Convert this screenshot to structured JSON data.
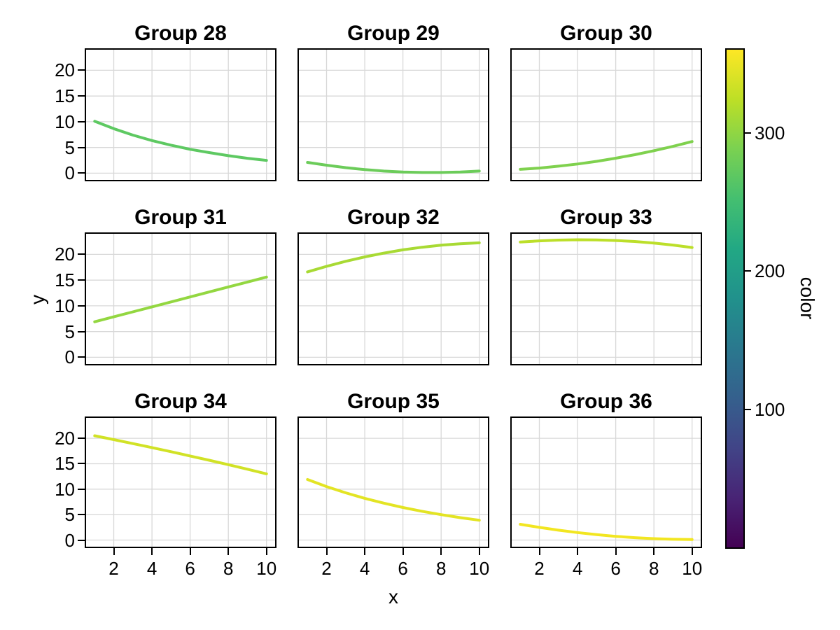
{
  "chart_data": {
    "type": "line",
    "layout": "3x3-facet-grid",
    "xlabel": "x",
    "ylabel": "y",
    "x": [
      1,
      2,
      3,
      4,
      5,
      6,
      7,
      8,
      9,
      10
    ],
    "xticks": [
      2,
      4,
      6,
      8,
      10
    ],
    "yticks": [
      0,
      5,
      10,
      15,
      20
    ],
    "xlim": [
      0.55,
      10.45
    ],
    "ylim": [
      -1.3,
      24.0
    ],
    "grid": true,
    "grid_color": "#d8d8d8",
    "spine_color": "#000000",
    "facets": [
      {
        "title": "Group 28",
        "line_color": "#5ec962",
        "y": [
          10.1,
          8.65,
          7.4,
          6.35,
          5.45,
          4.65,
          4.0,
          3.4,
          2.9,
          2.5
        ]
      },
      {
        "title": "Group 29",
        "line_color": "#6ccc5a",
        "y": [
          2.1,
          1.55,
          1.08,
          0.7,
          0.42,
          0.24,
          0.14,
          0.14,
          0.24,
          0.42
        ]
      },
      {
        "title": "Group 30",
        "line_color": "#7fd14e",
        "y": [
          0.75,
          1.0,
          1.36,
          1.79,
          2.31,
          2.91,
          3.6,
          4.37,
          5.22,
          6.15
        ]
      },
      {
        "title": "Group 31",
        "line_color": "#93d741",
        "y": [
          6.9,
          7.87,
          8.83,
          9.8,
          10.77,
          11.73,
          12.7,
          13.67,
          14.63,
          15.6
        ]
      },
      {
        "title": "Group 32",
        "line_color": "#a8da34",
        "y": [
          16.6,
          17.68,
          18.65,
          19.51,
          20.25,
          20.88,
          21.39,
          21.79,
          22.07,
          22.24
        ]
      },
      {
        "title": "Group 33",
        "line_color": "#bcdf2a",
        "y": [
          22.39,
          22.63,
          22.78,
          22.85,
          22.82,
          22.7,
          22.5,
          22.2,
          21.81,
          21.34
        ]
      },
      {
        "title": "Group 34",
        "line_color": "#d1e226",
        "y": [
          20.5,
          19.74,
          18.96,
          18.17,
          17.36,
          16.52,
          15.68,
          14.81,
          13.92,
          13.02
        ]
      },
      {
        "title": "Group 35",
        "line_color": "#e3e424",
        "y": [
          11.9,
          10.51,
          9.29,
          8.2,
          7.25,
          6.4,
          5.66,
          5.0,
          4.41,
          3.9
        ]
      },
      {
        "title": "Group 36",
        "line_color": "#f2e621",
        "y": [
          3.1,
          2.49,
          1.95,
          1.48,
          1.07,
          0.74,
          0.48,
          0.28,
          0.16,
          0.1
        ]
      }
    ],
    "colorbar": {
      "label": "color",
      "ticks": [
        100,
        200,
        300
      ],
      "range": [
        0,
        360
      ],
      "colormap": "viridis",
      "stops": [
        "#440154",
        "#482475",
        "#414487",
        "#35608d",
        "#2a788e",
        "#21918c",
        "#22a884",
        "#44bf70",
        "#7ad151",
        "#bddf26",
        "#fde725"
      ]
    }
  }
}
